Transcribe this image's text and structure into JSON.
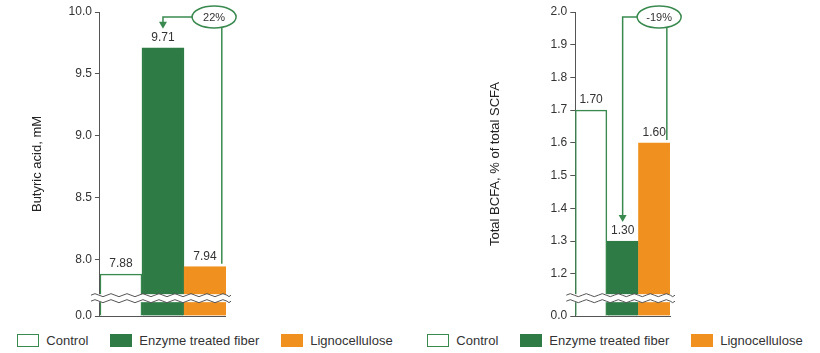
{
  "chart_data": [
    {
      "type": "bar",
      "categories": [
        "Control",
        "Enzyme treated fiber",
        "Lignocellulose"
      ],
      "values": [
        7.88,
        9.71,
        7.94
      ],
      "colors": [
        "#ffffff",
        "#2e7b45",
        "#f0901e"
      ],
      "y_label": "Butyric acid, mM",
      "ylim": [
        0,
        10
      ],
      "yticks": [
        {
          "value": 0,
          "label": "0.0"
        },
        {
          "value": 8,
          "label": "8.0"
        },
        8.5,
        {
          "value": 9,
          "label": "9.0"
        },
        9.5,
        {
          "value": 10,
          "label": "10.0"
        }
      ],
      "grid": false,
      "legend": "bottom",
      "data_labels": true,
      "tick_labels": "y",
      "annotations": [
        {
          "text": "22%",
          "from": "Lignocellulose",
          "to": "Enzyme treated fiber"
        }
      ]
    },
    {
      "type": "bar",
      "categories": [
        "Control",
        "Enzyme treated fiber",
        "Lignocellulose"
      ],
      "values": [
        1.7,
        1.3,
        1.6
      ],
      "value_labels": [
        "1.70",
        "1.30",
        "1.60"
      ],
      "colors": [
        "#ffffff",
        "#2e7b45",
        "#f0901e"
      ],
      "y_label": "Total BCFA, % of total SCFA",
      "ylim": [
        0,
        2
      ],
      "yticks": [
        {
          "value": 0,
          "label": "0.0"
        },
        1.2,
        1.3,
        1.4,
        1.5,
        1.6,
        1.7,
        1.8,
        1.9,
        {
          "value": 2,
          "label": "2.0"
        }
      ],
      "grid": false,
      "legend": "bottom",
      "data_labels": true,
      "tick_labels": "y",
      "annotations": [
        {
          "text": "-19%",
          "from": "Lignocellulose",
          "to": "Enzyme treated fiber"
        }
      ]
    }
  ]
}
